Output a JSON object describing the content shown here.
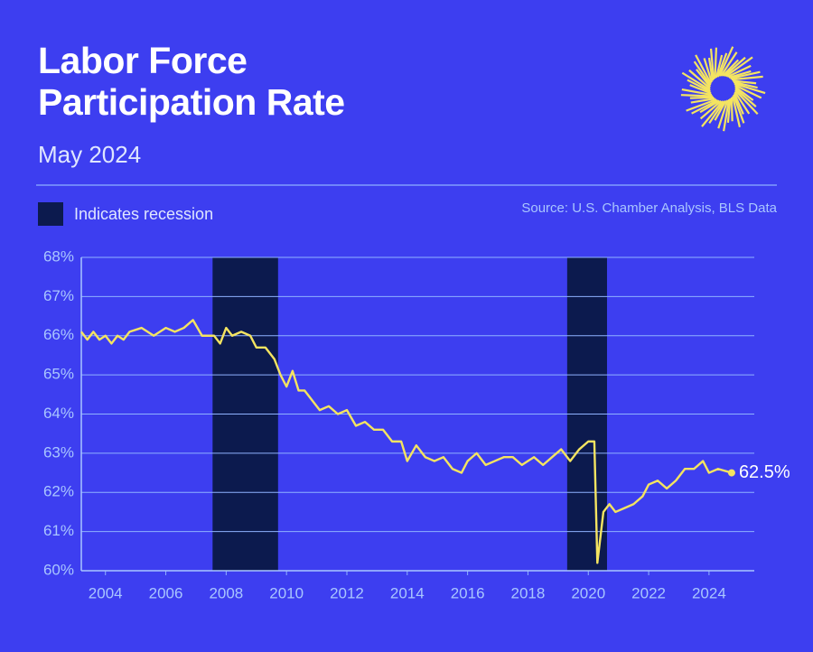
{
  "chart_data": {
    "type": "line",
    "title": "Labor Force Participation Rate",
    "subtitle": "May 2024",
    "legend_label": "Indicates recession",
    "source": "Source: U.S. Chamber Analysis, BLS Data",
    "end_label": "62.5%",
    "color": "#f4e461",
    "recession_color": "#0c1a4e",
    "grid": true,
    "recessions": [
      [
        2007.55,
        2009.72
      ],
      [
        2019.3,
        2020.62
      ]
    ],
    "x": [
      2003.2,
      2003.4,
      2003.6,
      2003.8,
      2004.0,
      2004.2,
      2004.4,
      2004.6,
      2004.8,
      2005.2,
      2005.6,
      2006.0,
      2006.3,
      2006.6,
      2006.9,
      2007.2,
      2007.6,
      2007.8,
      2008.0,
      2008.2,
      2008.5,
      2008.8,
      2009.0,
      2009.3,
      2009.6,
      2009.8,
      2010.0,
      2010.2,
      2010.4,
      2010.6,
      2010.9,
      2011.1,
      2011.4,
      2011.7,
      2012.0,
      2012.3,
      2012.6,
      2012.9,
      2013.2,
      2013.5,
      2013.8,
      2014.0,
      2014.3,
      2014.6,
      2014.9,
      2015.2,
      2015.5,
      2015.8,
      2016.0,
      2016.3,
      2016.6,
      2016.9,
      2017.2,
      2017.5,
      2017.8,
      2018.0,
      2018.2,
      2018.5,
      2018.8,
      2019.1,
      2019.4,
      2019.7,
      2020.0,
      2020.2,
      2020.3,
      2020.5,
      2020.7,
      2020.9,
      2021.2,
      2021.5,
      2021.8,
      2022.0,
      2022.3,
      2022.6,
      2022.9,
      2023.2,
      2023.5,
      2023.8,
      2024.0,
      2024.3,
      2024.75
    ],
    "values": [
      66.1,
      65.9,
      66.1,
      65.9,
      66.0,
      65.8,
      66.0,
      65.9,
      66.1,
      66.2,
      66.0,
      66.2,
      66.1,
      66.2,
      66.4,
      66.0,
      66.0,
      65.8,
      66.2,
      66.0,
      66.1,
      66.0,
      65.7,
      65.7,
      65.4,
      65.0,
      64.7,
      65.1,
      64.6,
      64.6,
      64.3,
      64.1,
      64.2,
      64.0,
      64.1,
      63.7,
      63.8,
      63.6,
      63.6,
      63.3,
      63.3,
      62.8,
      63.2,
      62.9,
      62.8,
      62.9,
      62.6,
      62.5,
      62.8,
      63.0,
      62.7,
      62.8,
      62.9,
      62.9,
      62.7,
      62.8,
      62.9,
      62.7,
      62.9,
      63.1,
      62.8,
      63.1,
      63.3,
      63.3,
      60.2,
      61.5,
      61.7,
      61.5,
      61.6,
      61.7,
      61.9,
      62.2,
      62.3,
      62.1,
      62.3,
      62.6,
      62.6,
      62.8,
      62.5,
      62.6,
      62.5
    ],
    "xlim": [
      2003.2,
      2025.5
    ],
    "xticks": [
      2004,
      2006,
      2008,
      2010,
      2012,
      2014,
      2016,
      2018,
      2020,
      2022,
      2024
    ],
    "ylim": [
      60,
      68
    ],
    "yticks": [
      {
        "value": 60,
        "label": "60%"
      },
      {
        "value": 61,
        "label": "61%"
      },
      {
        "value": 62,
        "label": "62%"
      },
      {
        "value": 63,
        "label": "63%"
      },
      {
        "value": 64,
        "label": "64%"
      },
      {
        "value": 65,
        "label": "65%"
      },
      {
        "value": 66,
        "label": "66%"
      },
      {
        "value": 67,
        "label": "67%"
      },
      {
        "value": 68,
        "label": "68%"
      }
    ]
  }
}
